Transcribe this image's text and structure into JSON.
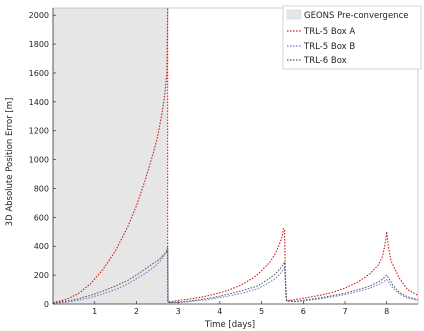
{
  "chart_data": {
    "type": "line",
    "xlabel": "Time [days]",
    "ylabel": "3D Absolute Position Error [m]",
    "xlim": [
      0,
      8.75
    ],
    "ylim": [
      0,
      2050
    ],
    "x_ticks": [
      1,
      2,
      3,
      4,
      5,
      6,
      7,
      8
    ],
    "y_ticks": [
      0,
      200,
      400,
      600,
      800,
      1000,
      1200,
      1400,
      1600,
      1800,
      2000
    ],
    "grid": false,
    "legend_position": "top-right",
    "shaded_region": {
      "label": "GEONS Pre-convergence",
      "x_start": 0,
      "x_end": 2.75,
      "color": "#e6e6e6"
    },
    "series": [
      {
        "name": "TRL-5 Box A",
        "color": "#cc2222",
        "x": [
          0.0,
          0.3,
          0.6,
          0.9,
          1.2,
          1.5,
          1.8,
          2.0,
          2.2,
          2.4,
          2.5,
          2.6,
          2.68,
          2.73,
          2.75,
          2.75,
          2.8,
          3.0,
          3.3,
          3.6,
          3.9,
          4.2,
          4.5,
          4.8,
          5.0,
          5.2,
          5.35,
          5.45,
          5.5,
          5.52,
          5.55,
          5.58,
          5.6,
          5.8,
          6.1,
          6.4,
          6.7,
          7.0,
          7.3,
          7.6,
          7.8,
          7.9,
          7.95,
          7.98,
          8.0,
          8.02,
          8.05,
          8.1,
          8.3,
          8.5,
          8.75
        ],
        "values": [
          10,
          30,
          70,
          140,
          240,
          370,
          540,
          680,
          850,
          1040,
          1150,
          1300,
          1450,
          1600,
          2050,
          20,
          15,
          25,
          35,
          50,
          70,
          95,
          130,
          180,
          230,
          290,
          360,
          430,
          470,
          520,
          520,
          60,
          20,
          30,
          45,
          60,
          80,
          110,
          150,
          210,
          270,
          330,
          400,
          450,
          500,
          450,
          380,
          300,
          180,
          100,
          60
        ]
      },
      {
        "name": "TRL-5 Box B",
        "color": "#7777cc",
        "x": [
          0.0,
          0.3,
          0.6,
          0.9,
          1.2,
          1.5,
          1.8,
          2.0,
          2.2,
          2.4,
          2.55,
          2.65,
          2.72,
          2.75,
          2.76,
          2.8,
          3.1,
          3.4,
          3.7,
          4.0,
          4.3,
          4.6,
          4.9,
          5.1,
          5.3,
          5.45,
          5.55,
          5.6,
          5.8,
          6.1,
          6.4,
          6.7,
          7.0,
          7.3,
          7.6,
          7.85,
          8.0,
          8.15,
          8.3,
          8.5,
          8.75
        ],
        "values": [
          5,
          12,
          25,
          45,
          70,
          100,
          140,
          175,
          210,
          250,
          290,
          330,
          370,
          400,
          10,
          8,
          12,
          20,
          30,
          45,
          60,
          80,
          105,
          135,
          170,
          210,
          250,
          20,
          15,
          25,
          35,
          50,
          65,
          85,
          110,
          140,
          170,
          110,
          70,
          40,
          25
        ]
      },
      {
        "name": "TRL-6 Box",
        "color": "#555555",
        "x": [
          0.0,
          0.3,
          0.6,
          0.9,
          1.2,
          1.5,
          1.8,
          2.0,
          2.2,
          2.4,
          2.55,
          2.65,
          2.72,
          2.75,
          2.76,
          2.8,
          3.1,
          3.4,
          3.7,
          4.0,
          4.3,
          4.6,
          4.9,
          5.1,
          5.3,
          5.45,
          5.55,
          5.6,
          5.8,
          6.1,
          6.4,
          6.7,
          7.0,
          7.3,
          7.6,
          7.85,
          8.0,
          8.15,
          8.3,
          8.5,
          8.75
        ],
        "values": [
          8,
          18,
          35,
          60,
          90,
          125,
          165,
          200,
          240,
          280,
          310,
          340,
          360,
          380,
          12,
          10,
          15,
          25,
          38,
          55,
          75,
          98,
          125,
          160,
          200,
          245,
          290,
          25,
          18,
          30,
          42,
          58,
          75,
          98,
          125,
          160,
          200,
          130,
          80,
          50,
          30
        ]
      }
    ]
  }
}
